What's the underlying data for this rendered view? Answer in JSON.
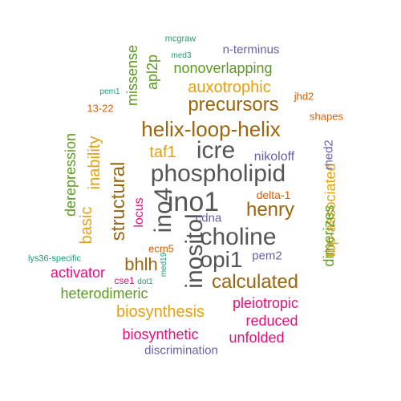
{
  "palette": {
    "gray": "#555555",
    "brown": "#996611",
    "gold": "#E6A010",
    "green": "#5A9A22",
    "purple": "#6A5FAA",
    "teal": "#1B9E77",
    "magenta": "#E0127A",
    "orange": "#D95F02"
  },
  "words": [
    {
      "text": "phospholipid",
      "color": "gray"
    },
    {
      "text": "ino1",
      "color": "gray"
    },
    {
      "text": "inositol",
      "color": "gray"
    },
    {
      "text": "ino4",
      "color": "gray"
    },
    {
      "text": "choline",
      "color": "gray"
    },
    {
      "text": "icre",
      "color": "gray"
    },
    {
      "text": "opi1",
      "color": "gray"
    },
    {
      "text": "helix-loop-helix",
      "color": "brown"
    },
    {
      "text": "calculated",
      "color": "brown"
    },
    {
      "text": "henry",
      "color": "brown"
    },
    {
      "text": "precursors",
      "color": "brown"
    },
    {
      "text": "structural",
      "color": "brown"
    },
    {
      "text": "bhlh",
      "color": "brown"
    },
    {
      "text": "auxotrophic",
      "color": "gold"
    },
    {
      "text": "biosynthesis",
      "color": "gold"
    },
    {
      "text": "basic",
      "color": "gold"
    },
    {
      "text": "inability",
      "color": "gold"
    },
    {
      "text": "taf1",
      "color": "gold"
    },
    {
      "text": "tbp-associated",
      "color": "gold"
    },
    {
      "text": "nonoverlapping",
      "color": "green"
    },
    {
      "text": "heterodimeric",
      "color": "green"
    },
    {
      "text": "derepression",
      "color": "green"
    },
    {
      "text": "apl2p",
      "color": "green"
    },
    {
      "text": "missense",
      "color": "green"
    },
    {
      "text": "dimerizes",
      "color": "green"
    },
    {
      "text": "pleiotropic",
      "color": "magenta"
    },
    {
      "text": "biosynthetic",
      "color": "magenta"
    },
    {
      "text": "unfolded",
      "color": "magenta"
    },
    {
      "text": "reduced",
      "color": "magenta"
    },
    {
      "text": "activator",
      "color": "magenta"
    },
    {
      "text": "locus",
      "color": "magenta"
    },
    {
      "text": "cse1",
      "color": "magenta"
    },
    {
      "text": "nikoloff",
      "color": "purple"
    },
    {
      "text": "discrimination",
      "color": "purple"
    },
    {
      "text": "n-terminus",
      "color": "purple"
    },
    {
      "text": "cdna",
      "color": "purple"
    },
    {
      "text": "pem2",
      "color": "purple"
    },
    {
      "text": "med2",
      "color": "purple"
    },
    {
      "text": "delta-1",
      "color": "orange"
    },
    {
      "text": "shapes",
      "color": "orange"
    },
    {
      "text": "13-22",
      "color": "orange"
    },
    {
      "text": "jhd2",
      "color": "orange"
    },
    {
      "text": "ecm5",
      "color": "orange"
    },
    {
      "text": "mcgraw",
      "color": "teal"
    },
    {
      "text": "med3",
      "color": "teal"
    },
    {
      "text": "pem1",
      "color": "teal"
    },
    {
      "text": "lys36-specific",
      "color": "teal"
    },
    {
      "text": "dot1",
      "color": "teal"
    },
    {
      "text": "med19",
      "color": "teal"
    }
  ]
}
